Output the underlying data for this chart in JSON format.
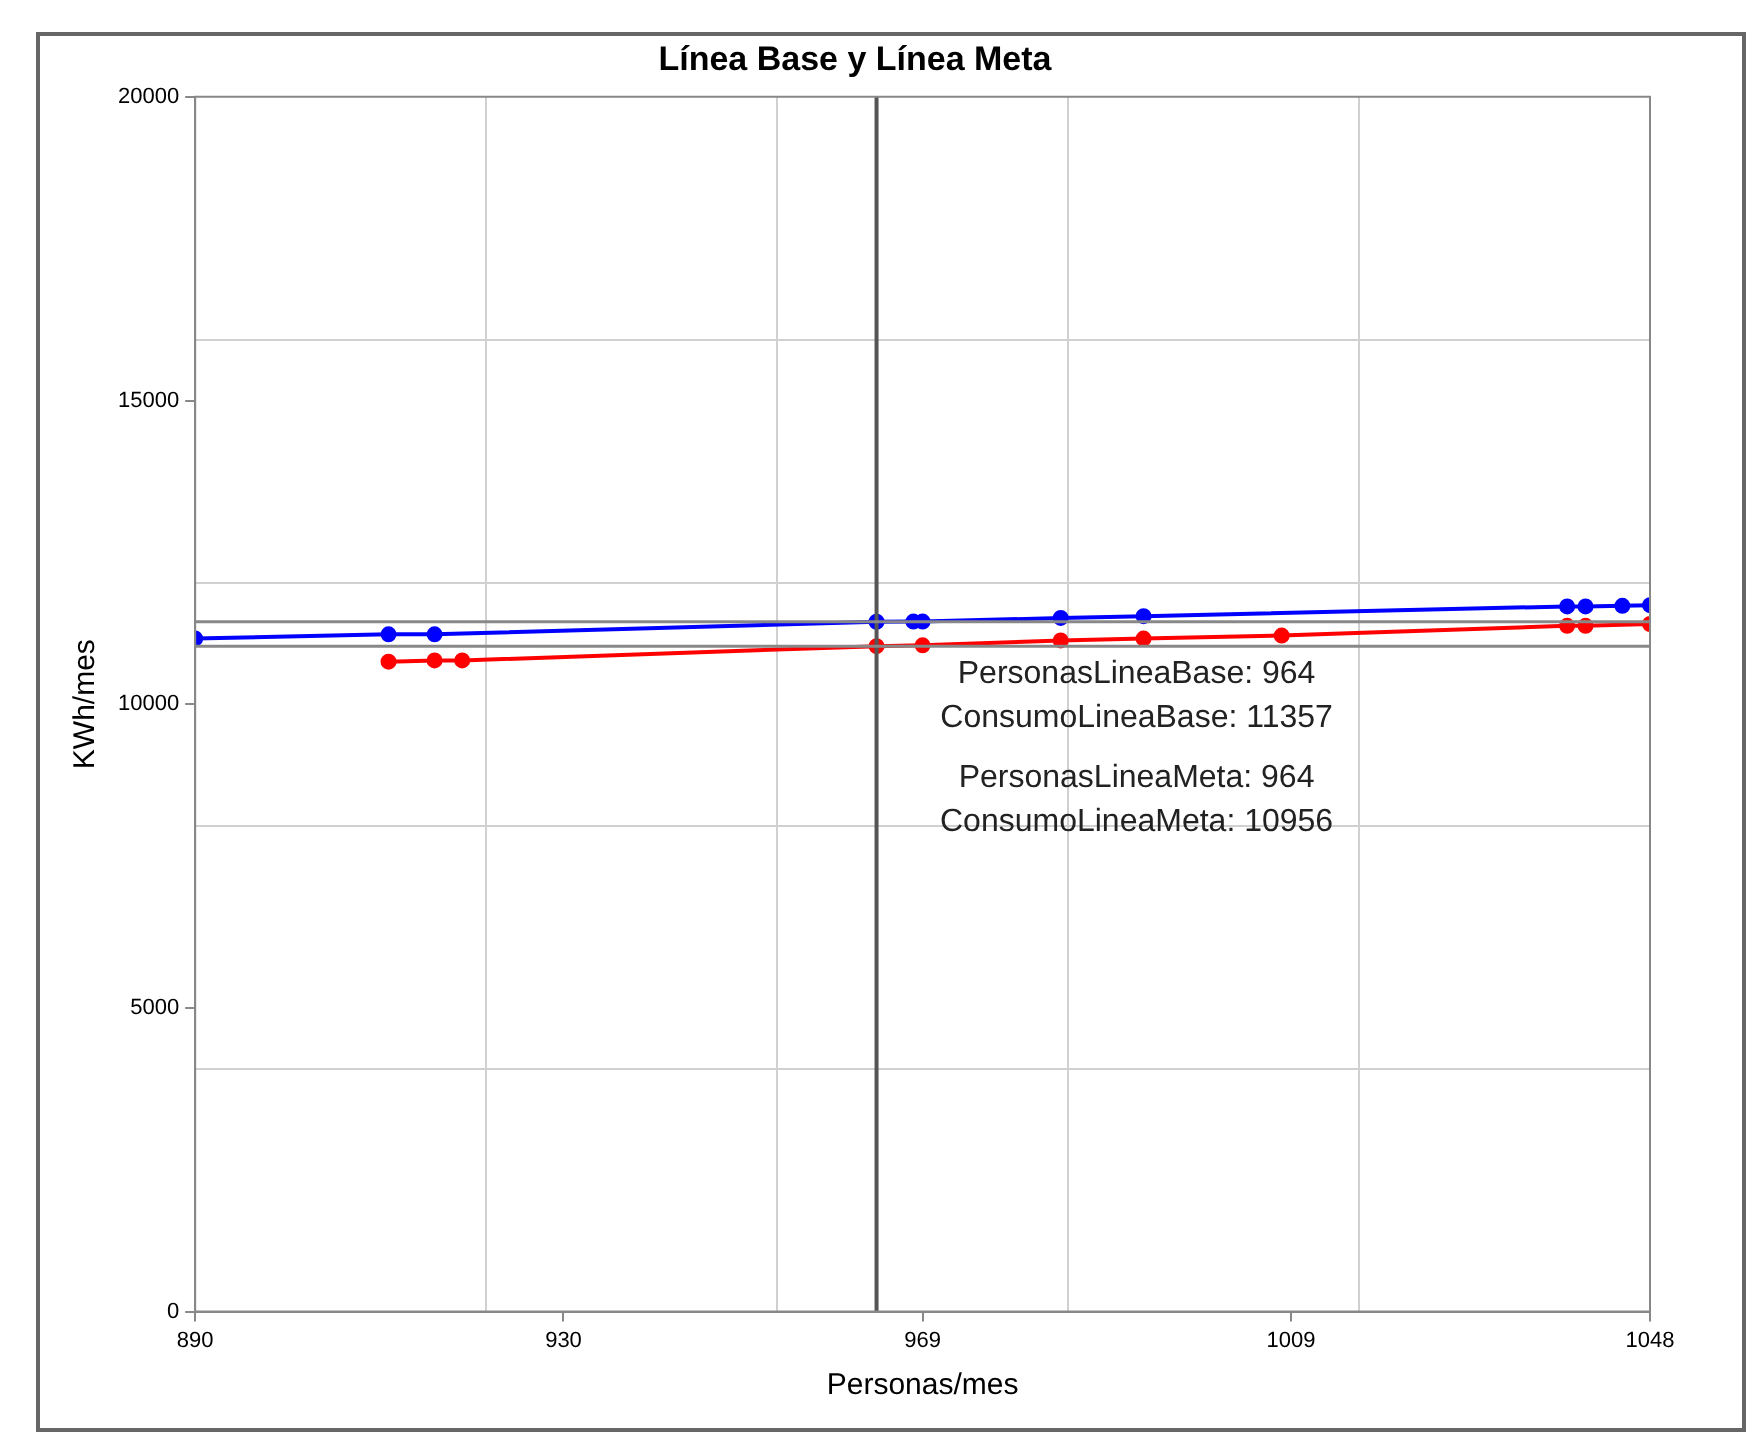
{
  "chart_data": {
    "type": "line",
    "title": "Línea Base y Línea Meta",
    "xlabel": "Personas/mes",
    "ylabel": "KWh/mes",
    "xlim": [
      890,
      1048
    ],
    "xticks": [
      890,
      {
        "value": 921.6,
        "label": null
      },
      930,
      {
        "value": 953.2,
        "label": null
      },
      969,
      {
        "value": 984.8,
        "label": null
      },
      1009,
      {
        "value": 1016.4,
        "label": null
      },
      1048
    ],
    "ylim": [
      0,
      20000
    ],
    "yticks": [
      0,
      {
        "value": 4000,
        "label": null
      },
      5000,
      {
        "value": 8000,
        "label": null
      },
      10000,
      {
        "value": 12000,
        "label": null
      },
      15000,
      {
        "value": 16000,
        "label": null
      },
      20000
    ],
    "series": [
      {
        "color": "#0000ff",
        "x": [
          890,
          911,
          916,
          964,
          968,
          969,
          984,
          993,
          1039,
          1041,
          1045,
          1048
        ],
        "values": [
          11080,
          11150,
          11150,
          11357,
          11360,
          11360,
          11420,
          11450,
          11610,
          11610,
          11620,
          11630
        ]
      },
      {
        "color": "#ff0000",
        "x": [
          911,
          916,
          919,
          964,
          969,
          984,
          993,
          1008,
          1039,
          1041,
          1048
        ],
        "values": [
          10700,
          10720,
          10720,
          10956,
          10970,
          11050,
          11080,
          11130,
          11290,
          11290,
          11320
        ]
      }
    ],
    "ref_lines": [
      {
        "axis": "x",
        "value": 964,
        "color": "#555555"
      },
      {
        "axis": "y",
        "value": 11357,
        "color": "#888888"
      },
      {
        "axis": "y",
        "value": 10956,
        "color": "#888888"
      }
    ],
    "annotations": [
      "PersonasLineaBase: 964",
      "ConsumoLineaBase: 11357",
      "PersonasLineaMeta: 964",
      "ConsumoLineaMeta: 10956"
    ],
    "grid": true,
    "legend": false,
    "marker": "circle",
    "line_style": "solid"
  }
}
